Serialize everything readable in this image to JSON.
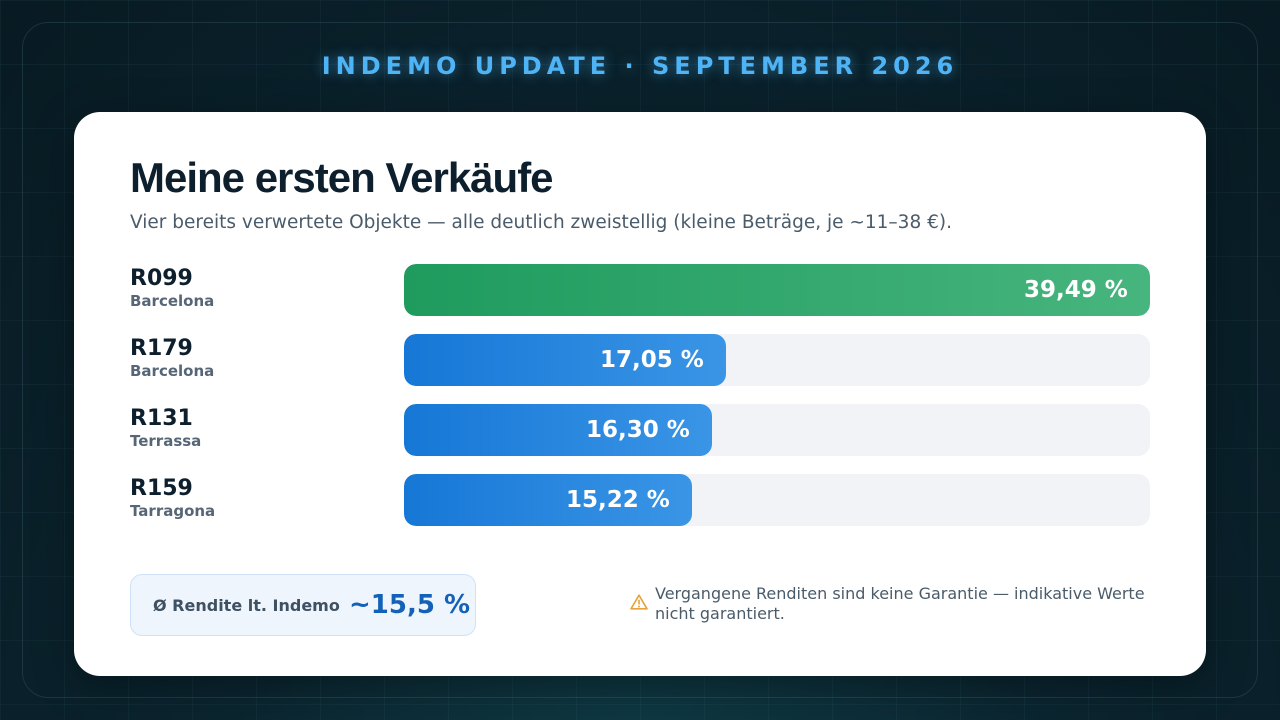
{
  "header": {
    "text": "INDEMO UPDATE · SEPTEMBER 2026"
  },
  "card": {
    "title": "Meine ersten Verkäufe",
    "subtitle": "Vier bereits verwertete Objekte — alle deutlich zweistellig (kleine Beträge, je ~11–38 €)."
  },
  "chart_data": {
    "type": "bar",
    "orientation": "horizontal",
    "title": "",
    "xlabel": "",
    "ylabel": "",
    "xlim": [
      0,
      39.49
    ],
    "categories": [
      "R099",
      "R179",
      "R131",
      "R159"
    ],
    "subcategories": [
      "Barcelona",
      "Barcelona",
      "Terrassa",
      "Tarragona"
    ],
    "values": [
      39.49,
      17.05,
      16.3,
      15.22
    ],
    "value_labels": [
      "39,49 %",
      "17,05 %",
      "16,30 %",
      "15,22 %"
    ],
    "colors": [
      "#2aa56a",
      "#1f7fdc",
      "#1f7fdc",
      "#1f7fdc"
    ],
    "grid": false,
    "legend": "none"
  },
  "summary": {
    "avg_label": "Ø Rendite lt. Indemo",
    "avg_value": "~15,5 %"
  },
  "note": {
    "icon": "warning-icon",
    "text": "Vergangene Renditen sind keine Garantie — indikative Werte nicht garantiert."
  },
  "colors": {
    "accent": "#4fb4f5",
    "highlight_bar": "#2aa56a",
    "bar": "#1f7fdc",
    "warning": "#e6a23c"
  }
}
